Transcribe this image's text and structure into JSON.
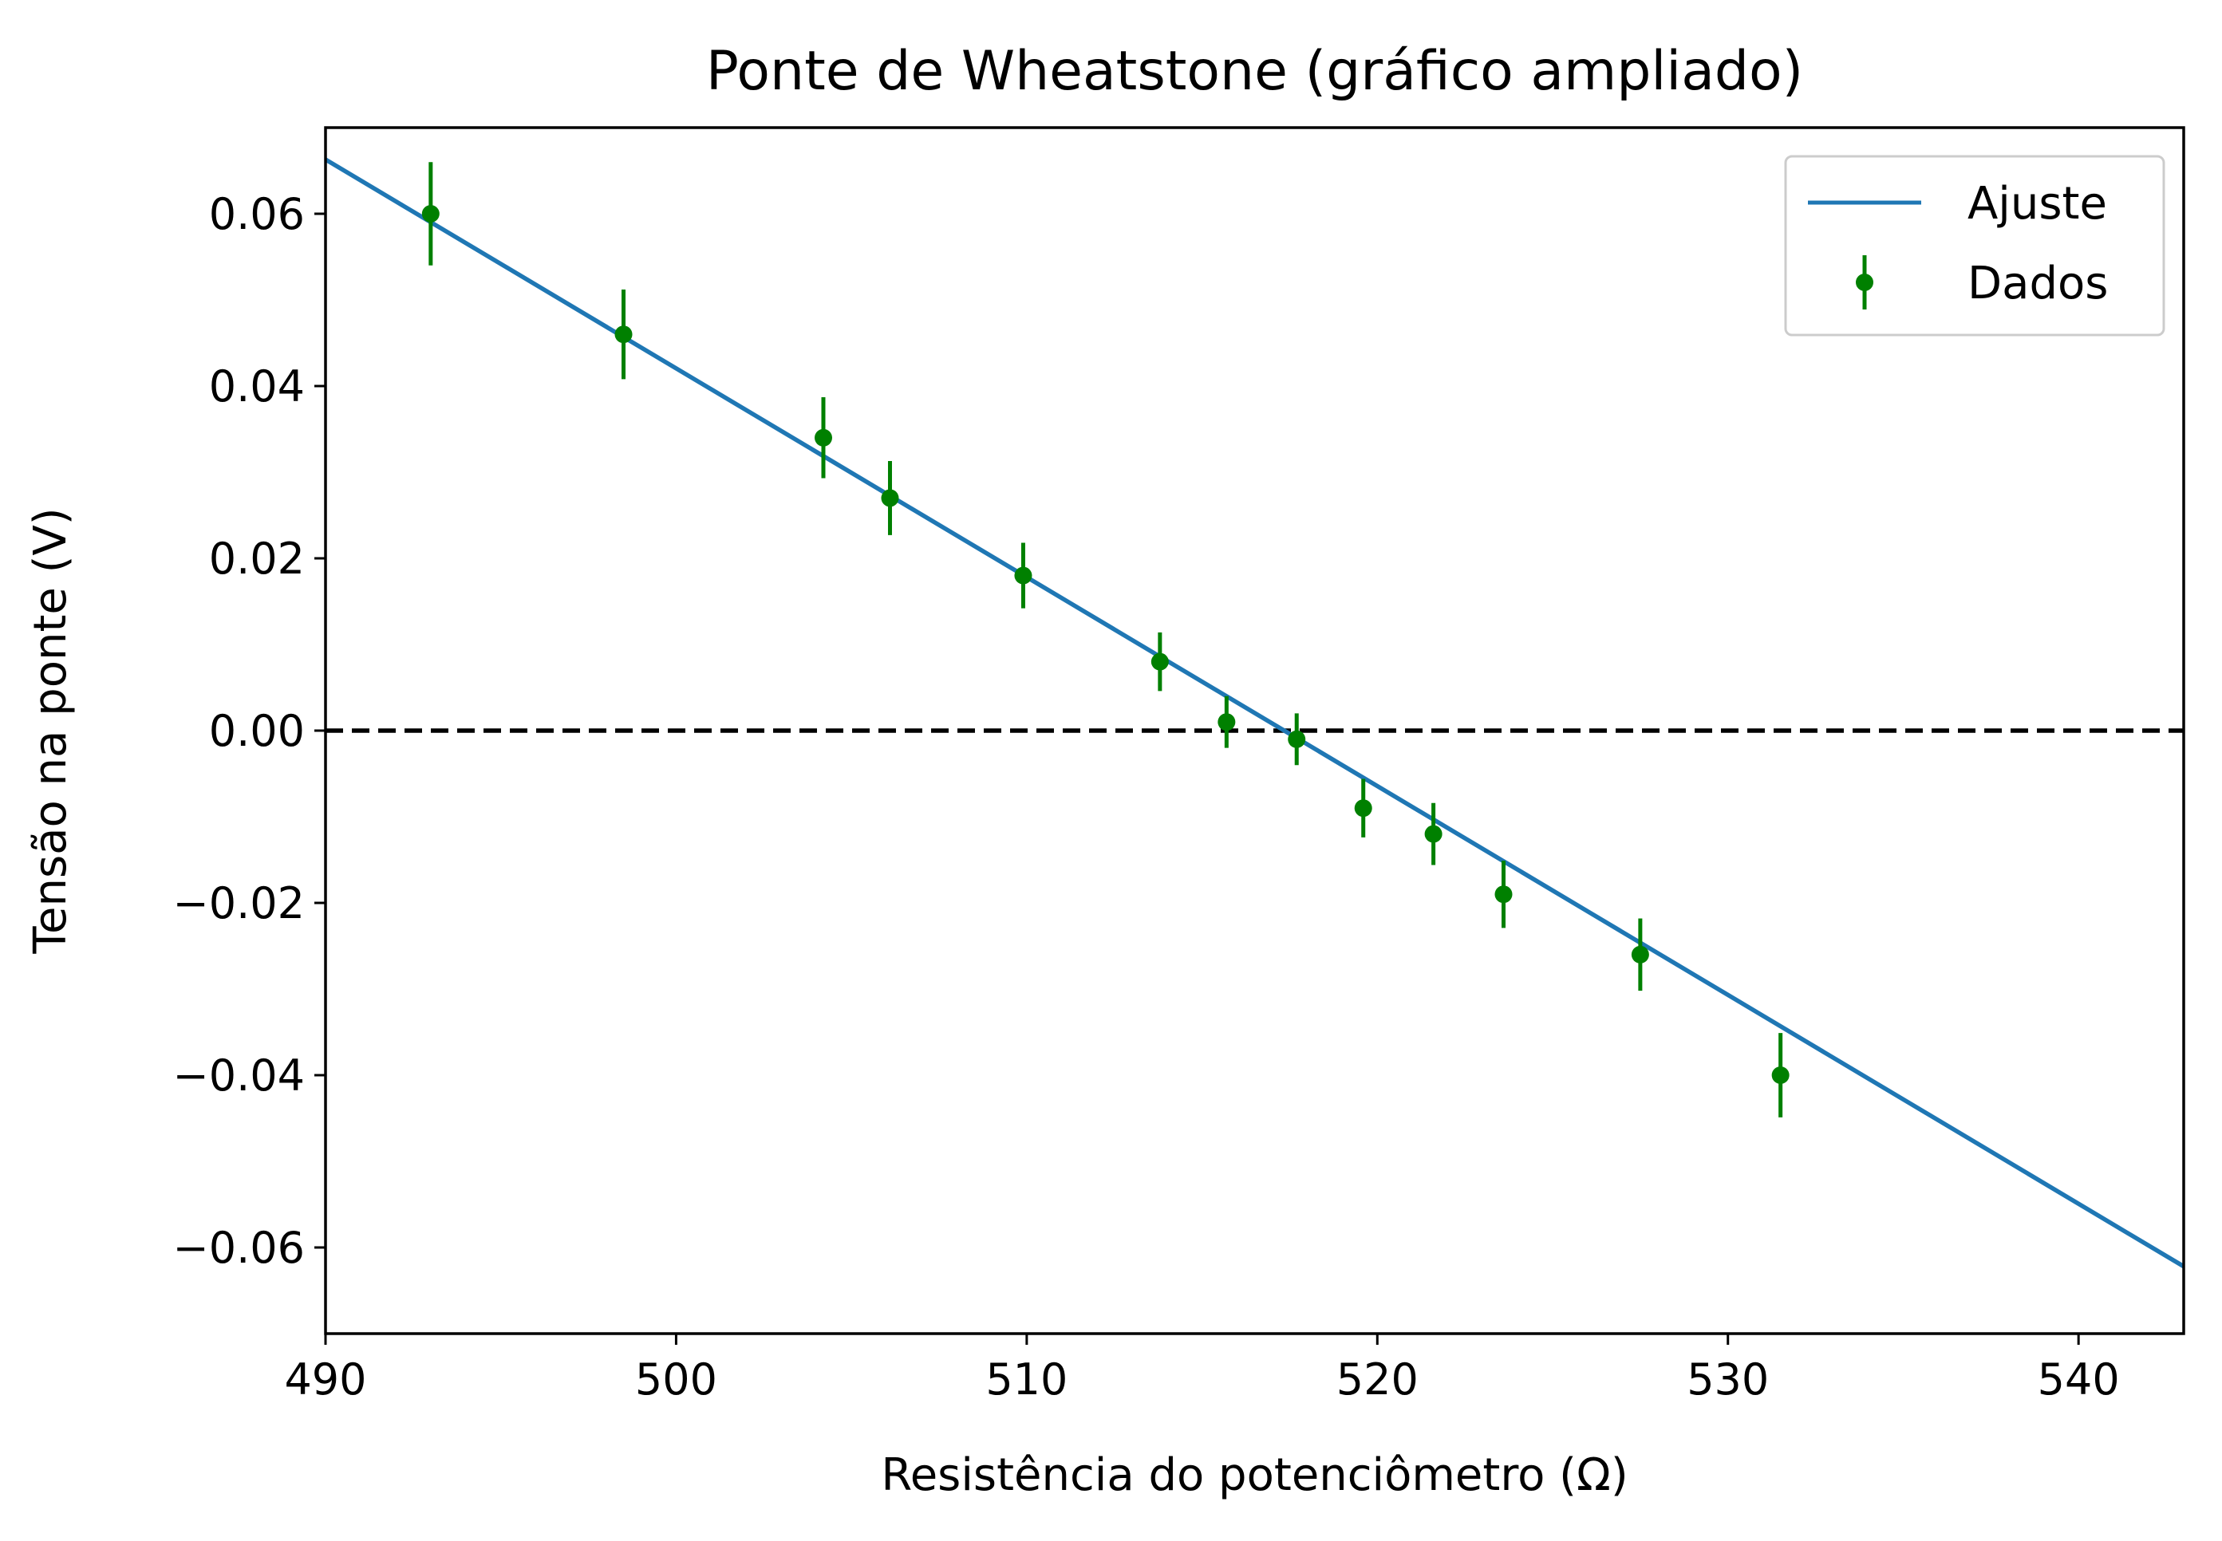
{
  "chart_data": {
    "type": "scatter",
    "title": "Ponte de Wheatstone (gráfico ampliado)",
    "xlabel": "Resistência do potenciômetro (Ω)",
    "ylabel": "Tensão na ponte (V)",
    "xlim": [
      490,
      543
    ],
    "ylim": [
      -0.07,
      0.07
    ],
    "xticks": [
      490,
      500,
      510,
      520,
      530,
      540
    ],
    "yticks": [
      0.06,
      0.04,
      0.02,
      0.0,
      -0.02,
      -0.04,
      -0.06
    ],
    "xtick_labels": [
      "490",
      "500",
      "510",
      "520",
      "530",
      "540"
    ],
    "ytick_labels": [
      "0.06",
      "0.04",
      "0.02",
      "0.00",
      "−0.02",
      "−0.04",
      "−0.06"
    ],
    "grid": false,
    "legend_position": "top-right",
    "reference_line": {
      "y": 0.0,
      "style": "dashed",
      "color": "#000000"
    },
    "series": [
      {
        "name": "Ajuste",
        "kind": "line",
        "color": "#1f77b4",
        "x": [
          490,
          543
        ],
        "y": [
          0.0663,
          -0.0622
        ]
      },
      {
        "name": "Dados",
        "kind": "errorbar",
        "color": "#008000",
        "x": [
          493.0,
          498.5,
          504.2,
          506.1,
          509.9,
          513.8,
          515.7,
          517.7,
          519.6,
          521.6,
          523.6,
          527.5,
          531.5
        ],
        "y": [
          0.06,
          0.046,
          0.034,
          0.027,
          0.018,
          0.008,
          0.001,
          -0.001,
          -0.009,
          -0.012,
          -0.019,
          -0.026,
          -0.04
        ],
        "yerr": [
          0.006,
          0.0052,
          0.0047,
          0.0043,
          0.0038,
          0.0034,
          0.003,
          0.003,
          0.0034,
          0.0036,
          0.0039,
          0.0042,
          0.0049
        ]
      }
    ]
  }
}
